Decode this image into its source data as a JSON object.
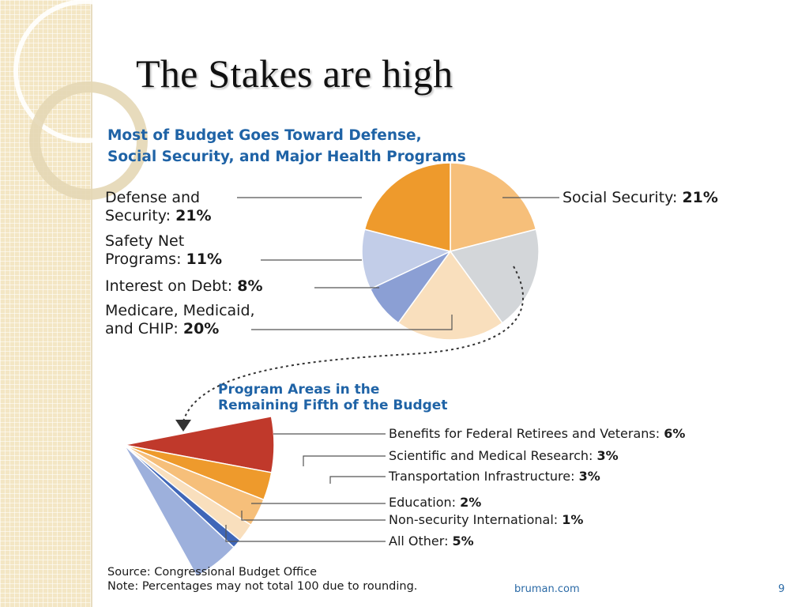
{
  "slide": {
    "title": "The Stakes are high",
    "footer_site": "bruman.com",
    "page_number": "9"
  },
  "chart_data": [
    {
      "type": "pie",
      "title_line1": "Most of Budget Goes Toward Defense,",
      "title_line2": "Social Security, and Major Health Programs",
      "slices": [
        {
          "name": "Social Security",
          "value": 21,
          "color": "#f6bf7a"
        },
        {
          "name": "Other (remaining fifth)",
          "value": 19,
          "color": "#d3d6d9"
        },
        {
          "name": "Medicare, Medicaid, and CHIP",
          "value": 20,
          "color": "#f9dfbd"
        },
        {
          "name": "Interest on Debt",
          "value": 8,
          "color": "#8b9fd4"
        },
        {
          "name": "Safety Net Programs",
          "value": 11,
          "color": "#c2cde8"
        },
        {
          "name": "Defense and Security",
          "value": 21,
          "color": "#ee9a2c"
        }
      ],
      "labels": {
        "social_security": {
          "line1_plain": "Social Security: ",
          "line1_bold": "21%"
        },
        "defense": {
          "line1": "Defense and",
          "line2_plain": "Security: ",
          "line2_bold": "21%"
        },
        "safety_net": {
          "line1": "Safety Net",
          "line2_plain": "Programs: ",
          "line2_bold": "11%"
        },
        "interest": {
          "line1_plain": "Interest on Debt: ",
          "line1_bold": "8%"
        },
        "medicare": {
          "line1": "Medicare, Medicaid,",
          "line2_plain": "and CHIP: ",
          "line2_bold": "20%"
        }
      }
    },
    {
      "type": "pie",
      "title_line1": "Program Areas in the",
      "title_line2": "Remaining Fifth of the Budget",
      "slices": [
        {
          "name": "Benefits for Federal Retirees and Veterans",
          "value": 6,
          "color": "#c0392b",
          "plain": "Benefits for Federal Retirees and Veterans: ",
          "bold": "6%"
        },
        {
          "name": "Scientific and Medical Research",
          "value": 3,
          "color": "#ee9a2c",
          "plain": "Scientific and Medical Research: ",
          "bold": "3%"
        },
        {
          "name": "Transportation Infrastructure",
          "value": 3,
          "color": "#f6bf7a",
          "plain": "Transportation Infrastructure: ",
          "bold": "3%"
        },
        {
          "name": "Education",
          "value": 2,
          "color": "#f9dfbd",
          "plain": "Education: ",
          "bold": "2%"
        },
        {
          "name": "Non-security International",
          "value": 1,
          "color": "#3f66b8",
          "plain": "Non-security International: ",
          "bold": "1%"
        },
        {
          "name": "All Other",
          "value": 5,
          "color": "#9db0dc",
          "plain": "All Other: ",
          "bold": "5%"
        }
      ]
    }
  ],
  "source": {
    "line1": "Source: Congressional Budget Office",
    "line2": "Note: Percentages may not total 100 due to rounding."
  }
}
